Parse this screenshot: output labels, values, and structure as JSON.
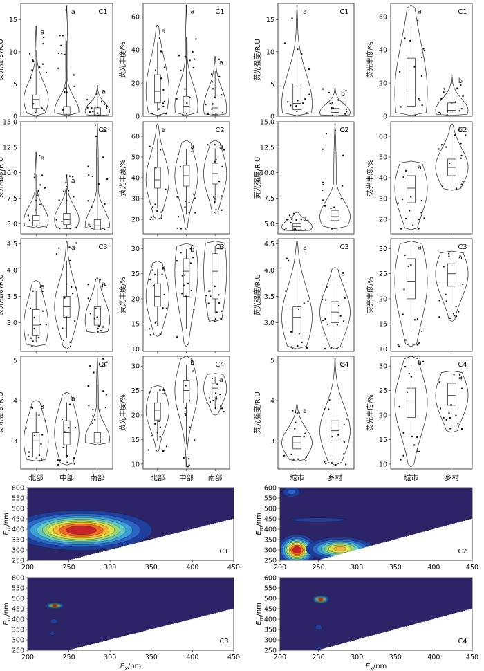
{
  "figure": {
    "violin_yticks": [
      {
        "vals": [
          0,
          5,
          10,
          15
        ],
        "labels": [
          "0",
          "5",
          "10",
          "15"
        ]
      },
      {
        "vals": [
          0,
          20,
          40,
          60
        ],
        "labels": [
          "0",
          "20",
          "40",
          "60"
        ]
      },
      {
        "vals": [
          0,
          5,
          10,
          15
        ],
        "labels": [
          "0",
          "5",
          "10",
          "15"
        ]
      },
      {
        "vals": [
          0,
          20,
          40,
          60
        ],
        "labels": [
          "0",
          "20",
          "40",
          "60"
        ]
      },
      {
        "vals": [
          5.0,
          7.5,
          10.0,
          12.5,
          15.0
        ],
        "labels": [
          "5.0",
          "7.5",
          "10.0",
          "12.5",
          "15.0"
        ]
      },
      {
        "vals": [
          20,
          30,
          40,
          50,
          60
        ],
        "labels": [
          "20",
          "30",
          "40",
          "50",
          "60"
        ]
      },
      {
        "vals": [
          5.0,
          7.5,
          10.0,
          12.5,
          15.0
        ],
        "labels": [
          "5.0",
          "7.5",
          "10.0",
          "12.5",
          "15.0"
        ]
      },
      {
        "vals": [
          20,
          30,
          40,
          50,
          60
        ],
        "labels": [
          "20",
          "30",
          "40",
          "50",
          "60"
        ]
      },
      {
        "vals": [
          3.0,
          3.5,
          4.0,
          4.5
        ],
        "labels": [
          "3.0",
          "3.5",
          "4.0",
          "4.5"
        ]
      },
      {
        "vals": [
          10,
          15,
          20,
          25,
          30
        ],
        "labels": [
          "10",
          "15",
          "20",
          "25",
          "30"
        ]
      },
      {
        "vals": [
          3.0,
          3.5,
          4.0,
          4.5
        ],
        "labels": [
          "3.0",
          "3.5",
          "4.0",
          "4.5"
        ]
      },
      {
        "vals": [
          10,
          15,
          20,
          25,
          30
        ],
        "labels": [
          "10",
          "15",
          "20",
          "25",
          "30"
        ]
      },
      {
        "vals": [
          3,
          4,
          5
        ],
        "labels": [
          "3",
          "4",
          "5"
        ]
      },
      {
        "vals": [
          10,
          15,
          20,
          25,
          30
        ],
        "labels": [
          "10",
          "15",
          "20",
          "25",
          "30"
        ]
      },
      {
        "vals": [
          3,
          4,
          5
        ],
        "labels": [
          "3",
          "4",
          "5"
        ]
      },
      {
        "vals": [
          10,
          15,
          20,
          25,
          30
        ],
        "labels": [
          "10",
          "15",
          "20",
          "25",
          "30"
        ]
      }
    ],
    "ylabel_intensity": "荧光强度/R.U",
    "ylabel_abundance": "荧光丰度/%",
    "xcat_region": [
      "北部",
      "中部",
      "南部"
    ],
    "xcat_urban": [
      "城市",
      "乡村"
    ],
    "eem_xlabel": "E",
    "eem_xlabel_sub": "X",
    "eem_ylabel": "E",
    "eem_ylabel_sub": "m",
    "eem_unit": "/nm",
    "eem_xticks": [
      "200",
      "250",
      "300",
      "350",
      "400",
      "450"
    ],
    "eem_yticks": [
      "600",
      "550",
      "500",
      "450",
      "400",
      "350",
      "300",
      "250"
    ]
  },
  "chart_data": [
    {
      "type": "violin",
      "panel": "C1 北部/中部/南部 强度",
      "label": "C1",
      "ylabel": "荧光强度/R.U",
      "ylim": [
        0,
        17.5
      ],
      "categories": [
        "北部",
        "中部",
        "南部"
      ],
      "groups": [
        {
          "min": 0.1,
          "max": 14,
          "q1": 1.2,
          "median": 2.6,
          "q3": 3.3,
          "letter": "a"
        },
        {
          "min": 0.1,
          "max": 17.2,
          "q1": 0.3,
          "median": 0.8,
          "q3": 1.5,
          "letter": "a"
        },
        {
          "min": 0.1,
          "max": 4.8,
          "q1": 0.2,
          "median": 0.8,
          "q3": 1.3,
          "letter": "a"
        }
      ]
    },
    {
      "type": "violin",
      "panel": "C1 北部/中部/南部 丰度",
      "label": "C1",
      "ylabel": "荧光丰度/%",
      "ylim": [
        0,
        68
      ],
      "categories": [
        "北部",
        "中部",
        "南部"
      ],
      "groups": [
        {
          "min": 0.5,
          "max": 55,
          "q1": 8,
          "median": 15,
          "q3": 25,
          "letter": "a"
        },
        {
          "min": 0.5,
          "max": 67,
          "q1": 2,
          "median": 6,
          "q3": 12,
          "letter": "a"
        },
        {
          "min": 0.5,
          "max": 36,
          "q1": 1,
          "median": 5,
          "q3": 11,
          "letter": "a"
        }
      ]
    },
    {
      "type": "violin",
      "panel": "C1 城市/乡村 强度",
      "label": "C1",
      "ylabel": "荧光强度/R.U",
      "ylim": [
        0,
        17.5
      ],
      "categories": [
        "城市",
        "乡村"
      ],
      "groups": [
        {
          "min": 0.1,
          "max": 17.2,
          "q1": 1.0,
          "median": 2.0,
          "q3": 5.0,
          "letter": "a"
        },
        {
          "min": 0.1,
          "max": 4.4,
          "q1": 0.1,
          "median": 0.6,
          "q3": 1.2,
          "letter": "b"
        }
      ]
    },
    {
      "type": "violin",
      "panel": "C1 城市/乡村 丰度",
      "label": "C1",
      "ylabel": "荧光丰度/%",
      "ylim": [
        0,
        68
      ],
      "categories": [
        "城市",
        "乡村"
      ],
      "groups": [
        {
          "min": 0.5,
          "max": 67,
          "q1": 6,
          "median": 14,
          "q3": 35,
          "letter": "a"
        },
        {
          "min": 0.5,
          "max": 25,
          "q1": 2,
          "median": 3.5,
          "q3": 8,
          "letter": "b"
        }
      ]
    },
    {
      "type": "violin",
      "panel": "C2 北部/中部/南部 强度",
      "label": "C2",
      "ylabel": "荧光强度/R.U",
      "ylim": [
        4,
        15
      ],
      "categories": [
        "北部",
        "中部",
        "南部"
      ],
      "groups": [
        {
          "min": 4.6,
          "max": 12,
          "q1": 4.8,
          "median": 5.3,
          "q3": 5.8,
          "letter": "a"
        },
        {
          "min": 4.5,
          "max": 9.8,
          "q1": 4.9,
          "median": 5.4,
          "q3": 6.0,
          "letter": "a"
        },
        {
          "min": 4.4,
          "max": 14.8,
          "q1": 4.4,
          "median": 4.8,
          "q3": 5.4,
          "letter": "a"
        }
      ]
    },
    {
      "type": "violin",
      "panel": "C2 北部/中部/南部 丰度",
      "label": "C2",
      "ylabel": "荧光丰度/%",
      "ylim": [
        13,
        67
      ],
      "categories": [
        "北部",
        "中部",
        "南部"
      ],
      "groups": [
        {
          "min": 20,
          "max": 66,
          "q1": 35,
          "median": 39,
          "q3": 45,
          "letter": "a"
        },
        {
          "min": 15,
          "max": 58,
          "q1": 36,
          "median": 41,
          "q3": 46,
          "letter": "a"
        },
        {
          "min": 23,
          "max": 58,
          "q1": 37,
          "median": 42,
          "q3": 47,
          "letter": "a"
        }
      ]
    },
    {
      "type": "violin",
      "panel": "C2 城市/乡村 强度",
      "label": "C2",
      "ylabel": "荧光强度/R.U",
      "ylim": [
        4,
        15
      ],
      "categories": [
        "城市",
        "乡村"
      ],
      "groups": [
        {
          "min": 4.3,
          "max": 6.1,
          "q1": 4.4,
          "median": 4.7,
          "q3": 5.0,
          "letter": "a"
        },
        {
          "min": 4.5,
          "max": 14.8,
          "q1": 5.3,
          "median": 5.7,
          "q3": 6.3,
          "letter": "b"
        }
      ]
    },
    {
      "type": "violin",
      "panel": "C2 城市/乡村 丰度",
      "label": "C2",
      "ylabel": "荧光丰度/%",
      "ylim": [
        13,
        67
      ],
      "categories": [
        "城市",
        "乡村"
      ],
      "groups": [
        {
          "min": 15,
          "max": 48,
          "q1": 28,
          "median": 35,
          "q3": 41,
          "letter": "a"
        },
        {
          "min": 34,
          "max": 66,
          "q1": 41,
          "median": 45,
          "q3": 49,
          "letter": "b"
        }
      ]
    },
    {
      "type": "violin",
      "panel": "C3 北部/中部/南部 强度",
      "label": "C3",
      "ylabel": "荧光强度/R.U",
      "ylim": [
        2.45,
        4.6
      ],
      "categories": [
        "北部",
        "中部",
        "南部"
      ],
      "groups": [
        {
          "min": 2.55,
          "max": 3.8,
          "q1": 2.75,
          "median": 2.95,
          "q3": 3.25,
          "letter": "a"
        },
        {
          "min": 2.5,
          "max": 4.55,
          "q1": 3.1,
          "median": 3.3,
          "q3": 3.5,
          "letter": "a"
        },
        {
          "min": 2.8,
          "max": 3.85,
          "q1": 2.95,
          "median": 3.05,
          "q3": 3.3,
          "letter": "a"
        }
      ]
    },
    {
      "type": "violin",
      "panel": "C3 北部/中部/南部 丰度",
      "label": "C3",
      "ylabel": "荧光丰度/%",
      "ylim": [
        9.5,
        32
      ],
      "categories": [
        "北部",
        "中部",
        "南部"
      ],
      "groups": [
        {
          "min": 12.5,
          "max": 27.5,
          "q1": 18.5,
          "median": 20.5,
          "q3": 23,
          "letter": "a"
        },
        {
          "min": 10.5,
          "max": 31,
          "q1": 20.5,
          "median": 25.5,
          "q3": 28,
          "letter": "b"
        },
        {
          "min": 15.5,
          "max": 31.5,
          "q1": 20,
          "median": 25.5,
          "q3": 29,
          "letter": "b"
        }
      ]
    },
    {
      "type": "violin",
      "panel": "C3 城市/乡村 强度",
      "label": "C3",
      "ylabel": "荧光强度/R.U",
      "ylim": [
        2.45,
        4.6
      ],
      "categories": [
        "城市",
        "乡村"
      ],
      "groups": [
        {
          "min": 2.5,
          "max": 4.55,
          "q1": 2.8,
          "median": 3.1,
          "q3": 3.3,
          "letter": "a"
        },
        {
          "min": 2.5,
          "max": 4.05,
          "q1": 3.0,
          "median": 3.2,
          "q3": 3.4,
          "letter": "a"
        }
      ]
    },
    {
      "type": "violin",
      "panel": "C3 城市/乡村 丰度",
      "label": "C3",
      "ylabel": "荧光丰度/%",
      "ylim": [
        9.5,
        32
      ],
      "categories": [
        "城市",
        "乡村"
      ],
      "groups": [
        {
          "min": 10.5,
          "max": 31.5,
          "q1": 20,
          "median": 23.5,
          "q3": 28,
          "letter": "a"
        },
        {
          "min": 15.5,
          "max": 29.5,
          "q1": 22.5,
          "median": 25,
          "q3": 27,
          "letter": "a"
        }
      ]
    },
    {
      "type": "violin",
      "panel": "C4 北部/中部/南部 强度",
      "label": "C4",
      "ylabel": "荧光强度/R.U",
      "ylim": [
        2.3,
        5.1
      ],
      "categories": [
        "北部",
        "中部",
        "南部"
      ],
      "groups": [
        {
          "min": 2.5,
          "max": 4.0,
          "q1": 2.6,
          "median": 3.0,
          "q3": 3.2,
          "letter": "a"
        },
        {
          "min": 2.4,
          "max": 4.2,
          "q1": 2.9,
          "median": 3.2,
          "q3": 3.5,
          "letter": "a"
        },
        {
          "min": 2.9,
          "max": 5.05,
          "q1": 2.95,
          "median": 3.05,
          "q3": 3.2,
          "letter": "a"
        }
      ]
    },
    {
      "type": "violin",
      "panel": "C4 北部/中部/南部 丰度",
      "label": "C4",
      "ylabel": "荧光丰度/%",
      "ylim": [
        9,
        32
      ],
      "categories": [
        "北部",
        "中部",
        "南部"
      ],
      "groups": [
        {
          "min": 12.5,
          "max": 26,
          "q1": 19,
          "median": 21,
          "q3": 22.5,
          "letter": "a"
        },
        {
          "min": 9.5,
          "max": 32,
          "q1": 22.5,
          "median": 25,
          "q3": 27,
          "letter": "b"
        },
        {
          "min": 20,
          "max": 28.5,
          "q1": 23.5,
          "median": 25.5,
          "q3": 26.5,
          "letter": "a"
        }
      ]
    },
    {
      "type": "violin",
      "panel": "C4 城市/乡村 强度",
      "label": "C4",
      "ylabel": "荧光强度/R.U",
      "ylim": [
        2.3,
        5.1
      ],
      "categories": [
        "城市",
        "乡村"
      ],
      "groups": [
        {
          "min": 2.5,
          "max": 3.9,
          "q1": 2.8,
          "median": 2.95,
          "q3": 3.1,
          "letter": "a"
        },
        {
          "min": 2.4,
          "max": 5.05,
          "q1": 3.0,
          "median": 3.25,
          "q3": 3.5,
          "letter": "b"
        }
      ]
    },
    {
      "type": "violin",
      "panel": "C4 城市/乡村 丰度",
      "label": "C4",
      "ylabel": "荧光丰度/%",
      "ylim": [
        9,
        32
      ],
      "categories": [
        "城市",
        "乡村"
      ],
      "groups": [
        {
          "min": 9.5,
          "max": 32,
          "q1": 19.5,
          "median": 22.5,
          "q3": 25.5,
          "letter": "a"
        },
        {
          "min": 16.5,
          "max": 29,
          "q1": 22,
          "median": 24,
          "q3": 26.5,
          "letter": "a"
        }
      ]
    },
    {
      "type": "heatmap",
      "label": "C1",
      "xlim": [
        200,
        450
      ],
      "ylim": [
        250,
        600
      ],
      "peaks": [
        {
          "ex": 265,
          "em": 395,
          "sx": 40,
          "sy": 45,
          "amp": 1.0
        }
      ]
    },
    {
      "type": "heatmap",
      "label": "C2",
      "xlim": [
        200,
        450
      ],
      "ylim": [
        250,
        600
      ],
      "peaks": [
        {
          "ex": 222,
          "em": 300,
          "sx": 12,
          "sy": 35,
          "amp": 1.0
        },
        {
          "ex": 278,
          "em": 305,
          "sx": 22,
          "sy": 28,
          "amp": 0.75
        },
        {
          "ex": 215,
          "em": 580,
          "sx": 8,
          "sy": 18,
          "amp": 0.25
        },
        {
          "ex": 250,
          "em": 445,
          "sx": 30,
          "sy": 8,
          "amp": 0.2
        }
      ]
    },
    {
      "type": "heatmap",
      "label": "C3",
      "xlim": [
        200,
        450
      ],
      "ylim": [
        250,
        600
      ],
      "peaks": [
        {
          "ex": 233,
          "em": 465,
          "sx": 5,
          "sy": 8,
          "amp": 1.0
        },
        {
          "ex": 232,
          "em": 390,
          "sx": 4,
          "sy": 10,
          "amp": 0.18
        },
        {
          "ex": 230,
          "em": 330,
          "sx": 4,
          "sy": 8,
          "amp": 0.15
        }
      ]
    },
    {
      "type": "heatmap",
      "label": "C4",
      "xlim": [
        200,
        450
      ],
      "ylim": [
        250,
        600
      ],
      "peaks": [
        {
          "ex": 253,
          "em": 495,
          "sx": 5,
          "sy": 10,
          "amp": 1.0
        },
        {
          "ex": 250,
          "em": 360,
          "sx": 4,
          "sy": 12,
          "amp": 0.18
        },
        {
          "ex": 250,
          "em": 260,
          "sx": 5,
          "sy": 5,
          "amp": 0.15
        }
      ]
    }
  ]
}
